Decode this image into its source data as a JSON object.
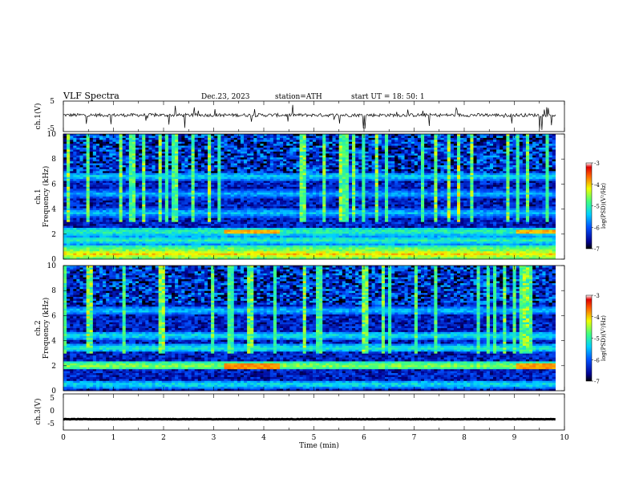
{
  "header": {
    "title": "VLF  Spectra",
    "date": "Dec.23, 2023",
    "station": "station=ATH",
    "start": "start  UT  =    18: 50: 1"
  },
  "chart_data": [
    {
      "type": "line",
      "name": "ch1-waveform",
      "ylabel": "ch.1(V)",
      "xlim": [
        0,
        10
      ],
      "ylim": [
        -5,
        5
      ],
      "yticks": [
        "5",
        "-5"
      ],
      "trace": {
        "baseline": 0.4,
        "jitter": 0.55,
        "spikes": 0.25
      },
      "color": "#000000"
    },
    {
      "type": "heatmap",
      "name": "ch1-spectrogram",
      "ylabel": "ch.1\nFrequency (kHz)",
      "ylabel_top": "ch.1",
      "ylabel_bottom": "Frequency (kHz)",
      "xlim": [
        0,
        10
      ],
      "ylim": [
        0,
        10
      ],
      "yticks": [
        "0",
        "2",
        "4",
        "6",
        "8",
        "10"
      ],
      "data_xmax": 9.82,
      "bands": [
        {
          "f": 0.4,
          "level": -4.0
        },
        {
          "f": 0.8,
          "level": -4.6
        },
        {
          "f": 1.5,
          "level": -5.0
        },
        {
          "f": 2.2,
          "level": -4.9
        },
        {
          "f": 3.7,
          "level": -5.4
        },
        {
          "f": 5.2,
          "level": -5.5
        },
        {
          "f": 6.6,
          "level": -5.3
        }
      ],
      "tone_segments": [
        {
          "t0": 3.2,
          "t1": 4.3,
          "f": 2.2,
          "level": -3.9
        },
        {
          "t0": 9.05,
          "t1": 9.82,
          "f": 2.2,
          "level": -3.9
        }
      ],
      "colorbar": {
        "label": "log(PSD)(V²/Hz)",
        "ticks": [
          "-3",
          "-4",
          "-5",
          "-6",
          "-7"
        ],
        "min": -7,
        "max": -3
      }
    },
    {
      "type": "heatmap",
      "name": "ch2-spectrogram",
      "ylabel_top": "ch.2",
      "ylabel_bottom": "Frequency (kHz)",
      "xlim": [
        0,
        10
      ],
      "ylim": [
        0,
        10
      ],
      "yticks": [
        "0",
        "2",
        "4",
        "6",
        "8",
        "10"
      ],
      "data_xmax": 9.82,
      "bands": [
        {
          "f": 0.5,
          "level": -5.2
        },
        {
          "f": 2.0,
          "level": -4.5
        },
        {
          "f": 3.4,
          "level": -5.1
        },
        {
          "f": 4.4,
          "level": -5.2
        },
        {
          "f": 6.4,
          "level": -5.4
        }
      ],
      "tone_segments": [
        {
          "t0": 3.2,
          "t1": 4.3,
          "f": 1.95,
          "level": -3.8
        },
        {
          "t0": 9.05,
          "t1": 9.82,
          "f": 1.95,
          "level": -3.8
        }
      ],
      "colorbar": {
        "label": "log(PSD)(V²/Hz)",
        "ticks": [
          "-3",
          "-4",
          "-5",
          "-6",
          "-7"
        ],
        "min": -7,
        "max": -3
      }
    },
    {
      "type": "line",
      "name": "ch3-waveform",
      "ylabel": "ch.3(V)",
      "xlim": [
        0,
        10
      ],
      "ylim": [
        -5,
        5
      ],
      "yticks": [
        "5",
        "0",
        "-5"
      ],
      "trace": {
        "baseline": -2.0,
        "jitter": 0.05,
        "spikes": 0
      },
      "xlabel": "Time  (min)",
      "xticks": [
        "0",
        "1",
        "2",
        "3",
        "4",
        "5",
        "6",
        "7",
        "8",
        "9",
        "10"
      ],
      "color": "#000000"
    }
  ]
}
